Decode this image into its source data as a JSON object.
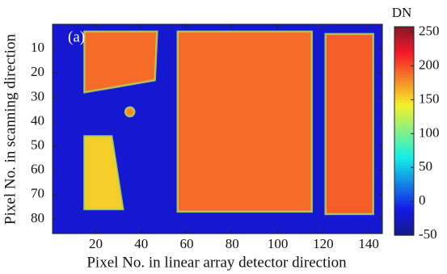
{
  "chart_data": {
    "type": "heatmap",
    "panel_label": "(a)",
    "xlabel": "Pixel No. in linear array detector direction",
    "ylabel": "Pixel No. in scanning direction",
    "xlim": [
      1,
      146
    ],
    "ylim": [
      0,
      86
    ],
    "y_reversed": true,
    "xticks": [
      20,
      40,
      60,
      80,
      100,
      120,
      140
    ],
    "yticks": [
      10,
      20,
      30,
      40,
      50,
      60,
      70,
      80
    ],
    "colorbar_label": "DN",
    "clim": [
      -50,
      258
    ],
    "cticks": [
      -50,
      0,
      50,
      100,
      150,
      200,
      250
    ],
    "colormap": "jet",
    "background_value": -20,
    "regions": [
      {
        "shape": "polygon",
        "points": [
          [
            15,
            3
          ],
          [
            47,
            3
          ],
          [
            46,
            23
          ],
          [
            15,
            28
          ]
        ],
        "value": 190
      },
      {
        "shape": "circle",
        "center": [
          35,
          36
        ],
        "radius": 2,
        "value": 180
      },
      {
        "shape": "polygon",
        "points": [
          [
            15,
            46
          ],
          [
            27,
            46
          ],
          [
            32,
            76
          ],
          [
            15,
            76
          ]
        ],
        "value": 155
      },
      {
        "shape": "polygon",
        "points": [
          [
            56,
            3
          ],
          [
            115,
            3
          ],
          [
            115,
            77
          ],
          [
            56,
            77
          ]
        ],
        "value": 190
      },
      {
        "shape": "polygon",
        "points": [
          [
            121,
            4
          ],
          [
            142,
            4
          ],
          [
            142,
            78
          ],
          [
            121,
            78
          ]
        ],
        "value": 195
      }
    ]
  }
}
